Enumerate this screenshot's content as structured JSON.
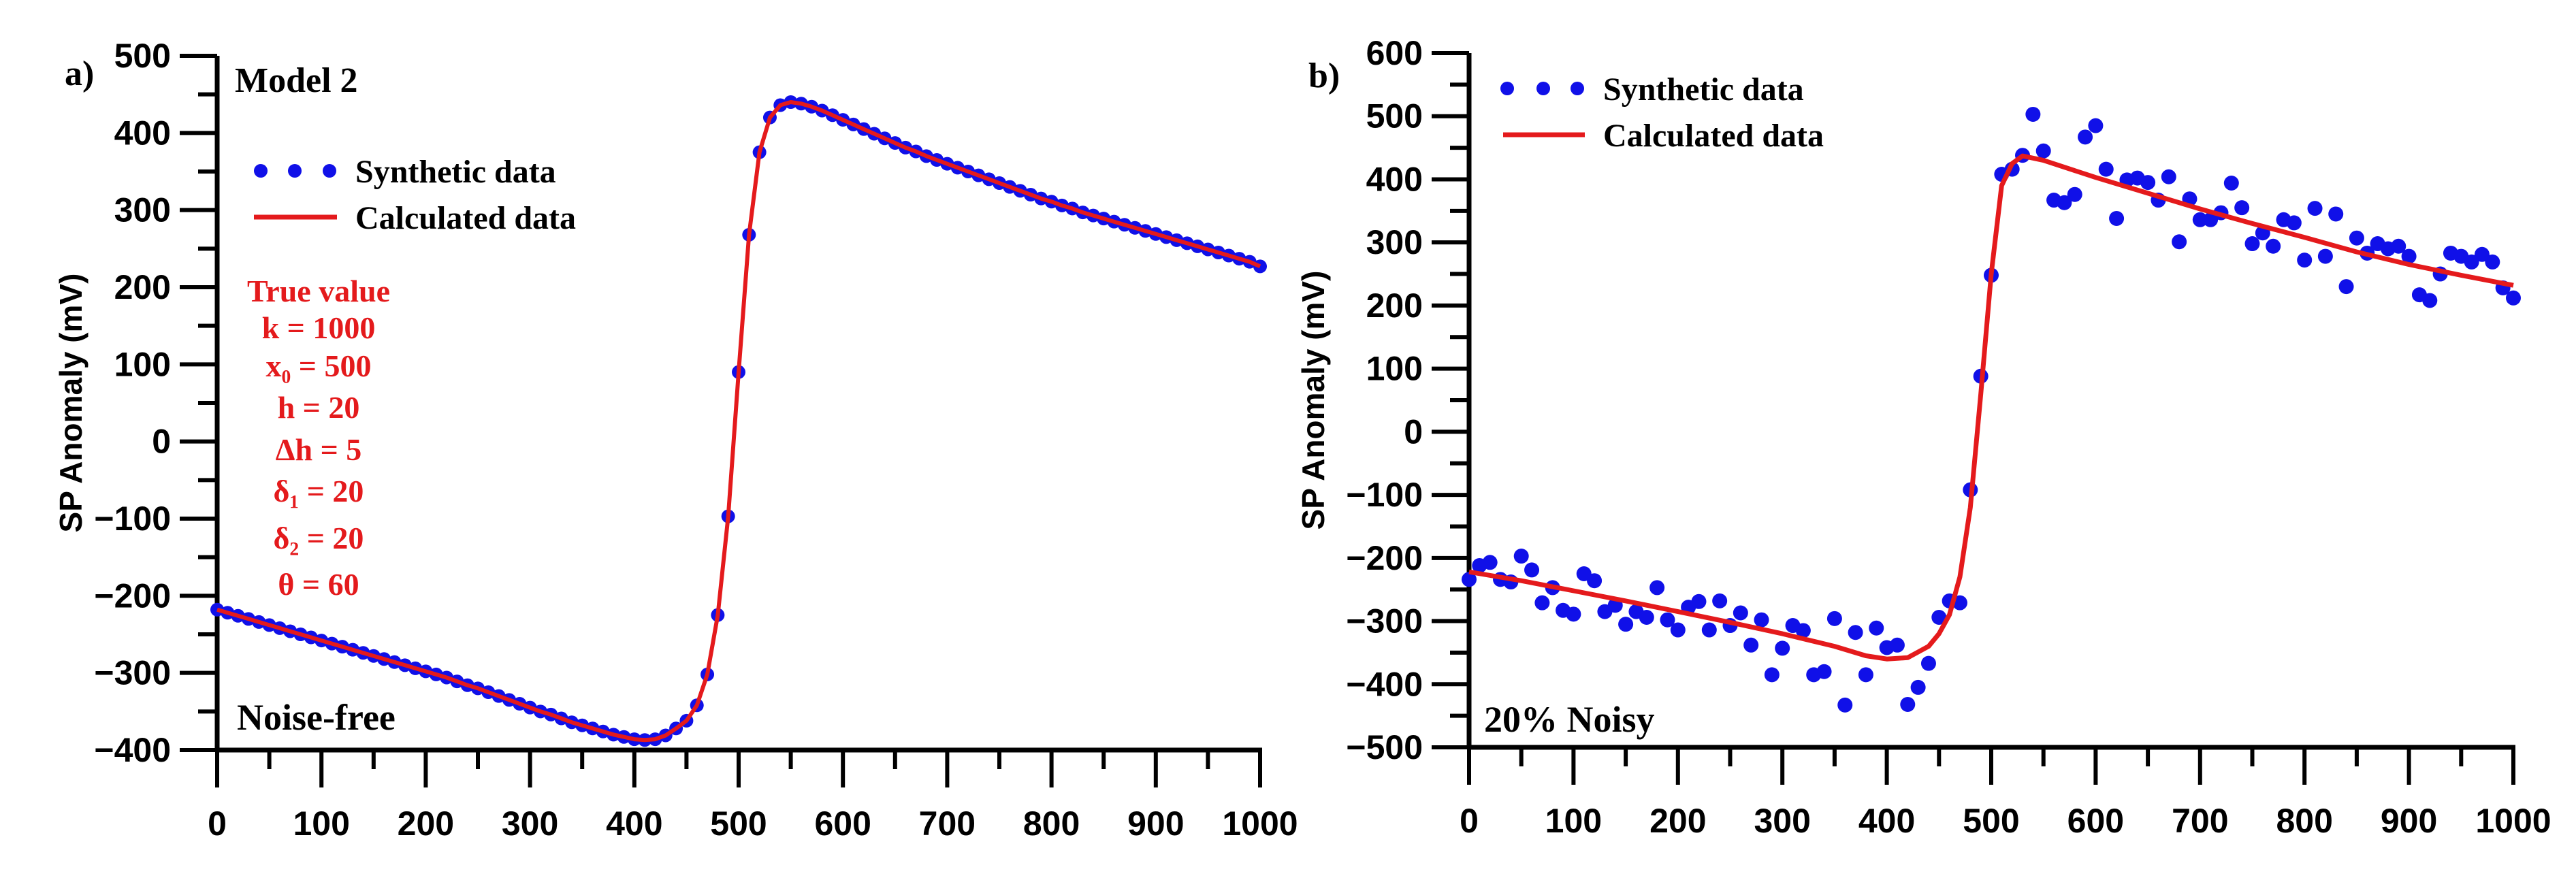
{
  "chart_data": [
    {
      "type": "scatter+line",
      "panel_label": "a)",
      "title": "Model 2",
      "annotation": "Noise-free",
      "xlabel": "",
      "ylabel": "SP Anomaly (mV)",
      "xlim": [
        0,
        1000
      ],
      "ylim": [
        -400,
        500
      ],
      "xticks": [
        0,
        100,
        200,
        300,
        400,
        500,
        600,
        700,
        800,
        900,
        1000
      ],
      "yticks": [
        500,
        400,
        300,
        200,
        100,
        0,
        -100,
        -200,
        -300,
        -400
      ],
      "ytick_labels": [
        "500",
        "400",
        "300",
        "200",
        "100",
        "0",
        "−100",
        "−200",
        "−300",
        "−400"
      ],
      "legend": {
        "placement": "top-left",
        "entries": [
          "Synthetic data",
          "Calculated data"
        ]
      },
      "true_values": {
        "heading": "True value",
        "lines": [
          "k = 1000",
          "x₀ = 500",
          "h = 20",
          "Δh = 5",
          "δ₁ = 20",
          "δ₂ = 20",
          "θ = 60"
        ]
      },
      "colors": {
        "synthetic": "#1010e8",
        "calculated": "#e41a1c",
        "true_value_text": "#e41a1c"
      },
      "x": [
        0,
        10,
        20,
        30,
        40,
        50,
        60,
        70,
        80,
        90,
        100,
        110,
        120,
        130,
        140,
        150,
        160,
        170,
        180,
        190,
        200,
        210,
        220,
        230,
        240,
        250,
        260,
        270,
        280,
        290,
        300,
        310,
        320,
        330,
        340,
        350,
        360,
        370,
        380,
        390,
        400,
        410,
        420,
        430,
        440,
        450,
        460,
        470,
        480,
        490,
        500,
        510,
        520,
        530,
        540,
        550,
        560,
        570,
        580,
        590,
        600,
        610,
        620,
        630,
        640,
        650,
        660,
        670,
        680,
        690,
        700,
        710,
        720,
        730,
        740,
        750,
        760,
        770,
        780,
        790,
        800,
        810,
        820,
        830,
        840,
        850,
        860,
        870,
        880,
        890,
        900,
        910,
        920,
        930,
        940,
        950,
        960,
        970,
        980,
        990,
        1000
      ],
      "series": [
        {
          "name": "Synthetic data",
          "style": "dots",
          "values": [
            -218,
            -222,
            -226,
            -230,
            -234,
            -238,
            -242,
            -246,
            -250,
            -254,
            -258,
            -262,
            -266,
            -270,
            -274,
            -278,
            -282,
            -286,
            -290,
            -294,
            -298,
            -302,
            -306,
            -311,
            -316,
            -320,
            -325,
            -330,
            -335,
            -340,
            -345,
            -350,
            -354,
            -359,
            -364,
            -368,
            -372,
            -376,
            -380,
            -383,
            -386,
            -387,
            -386,
            -381,
            -372,
            -362,
            -342,
            -302,
            -225,
            -97,
            90,
            268,
            375,
            420,
            436,
            440,
            438,
            434,
            429,
            423,
            417,
            411,
            405,
            399,
            393,
            387,
            381,
            376,
            370,
            365,
            360,
            355,
            350,
            345,
            340,
            335,
            330,
            325,
            320,
            315,
            311,
            306,
            302,
            297,
            293,
            289,
            285,
            281,
            277,
            273,
            269,
            265,
            261,
            257,
            253,
            249,
            245,
            241,
            237,
            233,
            227
          ]
        },
        {
          "name": "Calculated data",
          "style": "line",
          "values": [
            -218,
            -222,
            -226,
            -230,
            -234,
            -238,
            -242,
            -246,
            -250,
            -254,
            -258,
            -262,
            -266,
            -270,
            -274,
            -278,
            -282,
            -286,
            -290,
            -294,
            -298,
            -302,
            -306,
            -311,
            -316,
            -320,
            -325,
            -330,
            -335,
            -340,
            -345,
            -350,
            -354,
            -359,
            -364,
            -368,
            -372,
            -376,
            -380,
            -383,
            -386,
            -387,
            -386,
            -381,
            -372,
            -362,
            -342,
            -302,
            -225,
            -97,
            90,
            268,
            375,
            420,
            436,
            440,
            438,
            434,
            429,
            423,
            417,
            411,
            405,
            399,
            393,
            387,
            381,
            376,
            370,
            365,
            360,
            355,
            350,
            345,
            340,
            335,
            330,
            325,
            320,
            315,
            311,
            306,
            302,
            297,
            293,
            289,
            285,
            281,
            277,
            273,
            269,
            265,
            261,
            257,
            253,
            249,
            245,
            241,
            237,
            233,
            227
          ]
        }
      ]
    },
    {
      "type": "scatter+line",
      "panel_label": "b)",
      "annotation": "20% Noisy",
      "xlabel": "",
      "ylabel": "SP Anomaly (mV)",
      "xlim": [
        0,
        1000
      ],
      "ylim": [
        -500,
        600
      ],
      "xticks": [
        0,
        100,
        200,
        300,
        400,
        500,
        600,
        700,
        800,
        900,
        1000
      ],
      "yticks": [
        600,
        500,
        400,
        300,
        200,
        100,
        0,
        -100,
        -200,
        -300,
        -400,
        -500
      ],
      "ytick_labels": [
        "600",
        "500",
        "400",
        "300",
        "200",
        "100",
        "0",
        "−100",
        "−200",
        "−300",
        "−400",
        "−500"
      ],
      "legend": {
        "placement": "top-left",
        "entries": [
          "Synthetic data",
          "Calculated data"
        ]
      },
      "colors": {
        "synthetic": "#1010e8",
        "calculated": "#e41a1c"
      },
      "series": [
        {
          "name": "Synthetic data",
          "style": "dots",
          "x": [
            0,
            10,
            20,
            30,
            40,
            50,
            60,
            70,
            80,
            90,
            100,
            110,
            120,
            130,
            140,
            150,
            160,
            170,
            180,
            190,
            200,
            210,
            220,
            230,
            240,
            250,
            260,
            270,
            280,
            290,
            300,
            310,
            320,
            330,
            340,
            350,
            360,
            370,
            380,
            390,
            400,
            410,
            420,
            430,
            440,
            450,
            460,
            470,
            480,
            490,
            500,
            510,
            520,
            530,
            540,
            550,
            560,
            570,
            580,
            590,
            600,
            610,
            620,
            630,
            640,
            650,
            660,
            670,
            680,
            690,
            700,
            710,
            720,
            730,
            740,
            750,
            760,
            770,
            780,
            790,
            800,
            810,
            820,
            830,
            840,
            850,
            860,
            870,
            880,
            890,
            900,
            910,
            920,
            930,
            940,
            950,
            960,
            970,
            980,
            990,
            1000
          ],
          "values": [
            -234,
            -212,
            -207,
            -234,
            -238,
            -197,
            -219,
            -271,
            -247,
            -283,
            -289,
            -225,
            -236,
            -285,
            -275,
            -305,
            -285,
            -294,
            -247,
            -298,
            -314,
            -278,
            -269,
            -314,
            -268,
            -307,
            -287,
            -338,
            -298,
            -385,
            -343,
            -307,
            -315,
            -385,
            -380,
            -296,
            -433,
            -318,
            -385,
            -311,
            -342,
            -338,
            -432,
            -405,
            -367,
            -294,
            -268,
            -271,
            -92,
            88,
            248,
            408,
            416,
            438,
            503,
            445,
            367,
            363,
            376,
            467,
            485,
            416,
            338,
            399,
            402,
            395,
            367,
            404,
            301,
            369,
            336,
            336,
            347,
            394,
            355,
            298,
            315,
            294,
            336,
            331,
            272,
            354,
            278,
            345,
            230,
            307,
            283,
            298,
            290,
            294,
            278,
            217,
            208,
            250,
            283,
            278,
            269,
            281,
            269,
            228,
            212
          ]
        },
        {
          "name": "Calculated data",
          "style": "line",
          "x": [
            0,
            50,
            100,
            150,
            200,
            250,
            300,
            350,
            380,
            400,
            420,
            440,
            450,
            460,
            470,
            480,
            490,
            500,
            510,
            520,
            530,
            550,
            600,
            650,
            700,
            750,
            800,
            850,
            900,
            950,
            1000
          ],
          "values": [
            -222,
            -236,
            -252,
            -268,
            -285,
            -302,
            -320,
            -340,
            -355,
            -360,
            -358,
            -340,
            -320,
            -290,
            -230,
            -120,
            60,
            250,
            390,
            425,
            437,
            430,
            403,
            378,
            353,
            330,
            308,
            285,
            265,
            248,
            232
          ]
        }
      ]
    }
  ]
}
